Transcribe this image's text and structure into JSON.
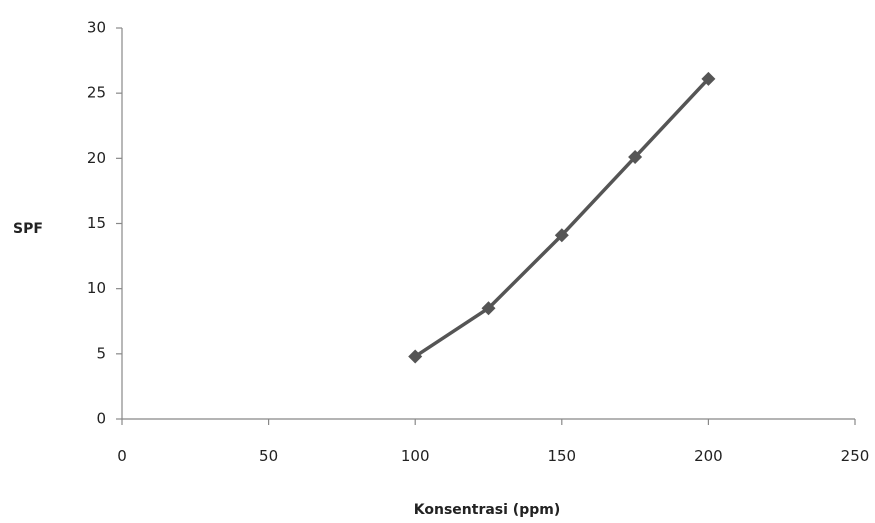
{
  "chart_data": {
    "type": "line",
    "title": "",
    "xlabel": "Konsentrasi (ppm)",
    "ylabel": "SPF",
    "xlim": [
      0,
      250
    ],
    "ylim": [
      0,
      30
    ],
    "xticks": [
      0,
      50,
      100,
      150,
      200,
      250
    ],
    "yticks": [
      0,
      5,
      10,
      15,
      20,
      25,
      30
    ],
    "grid": false,
    "legend": "none",
    "series": [
      {
        "x": [
          100,
          125,
          150,
          175,
          200
        ],
        "y": [
          4.8,
          8.5,
          14.1,
          20.1,
          26.1
        ],
        "color": "#555555",
        "marker": "diamond"
      }
    ]
  }
}
